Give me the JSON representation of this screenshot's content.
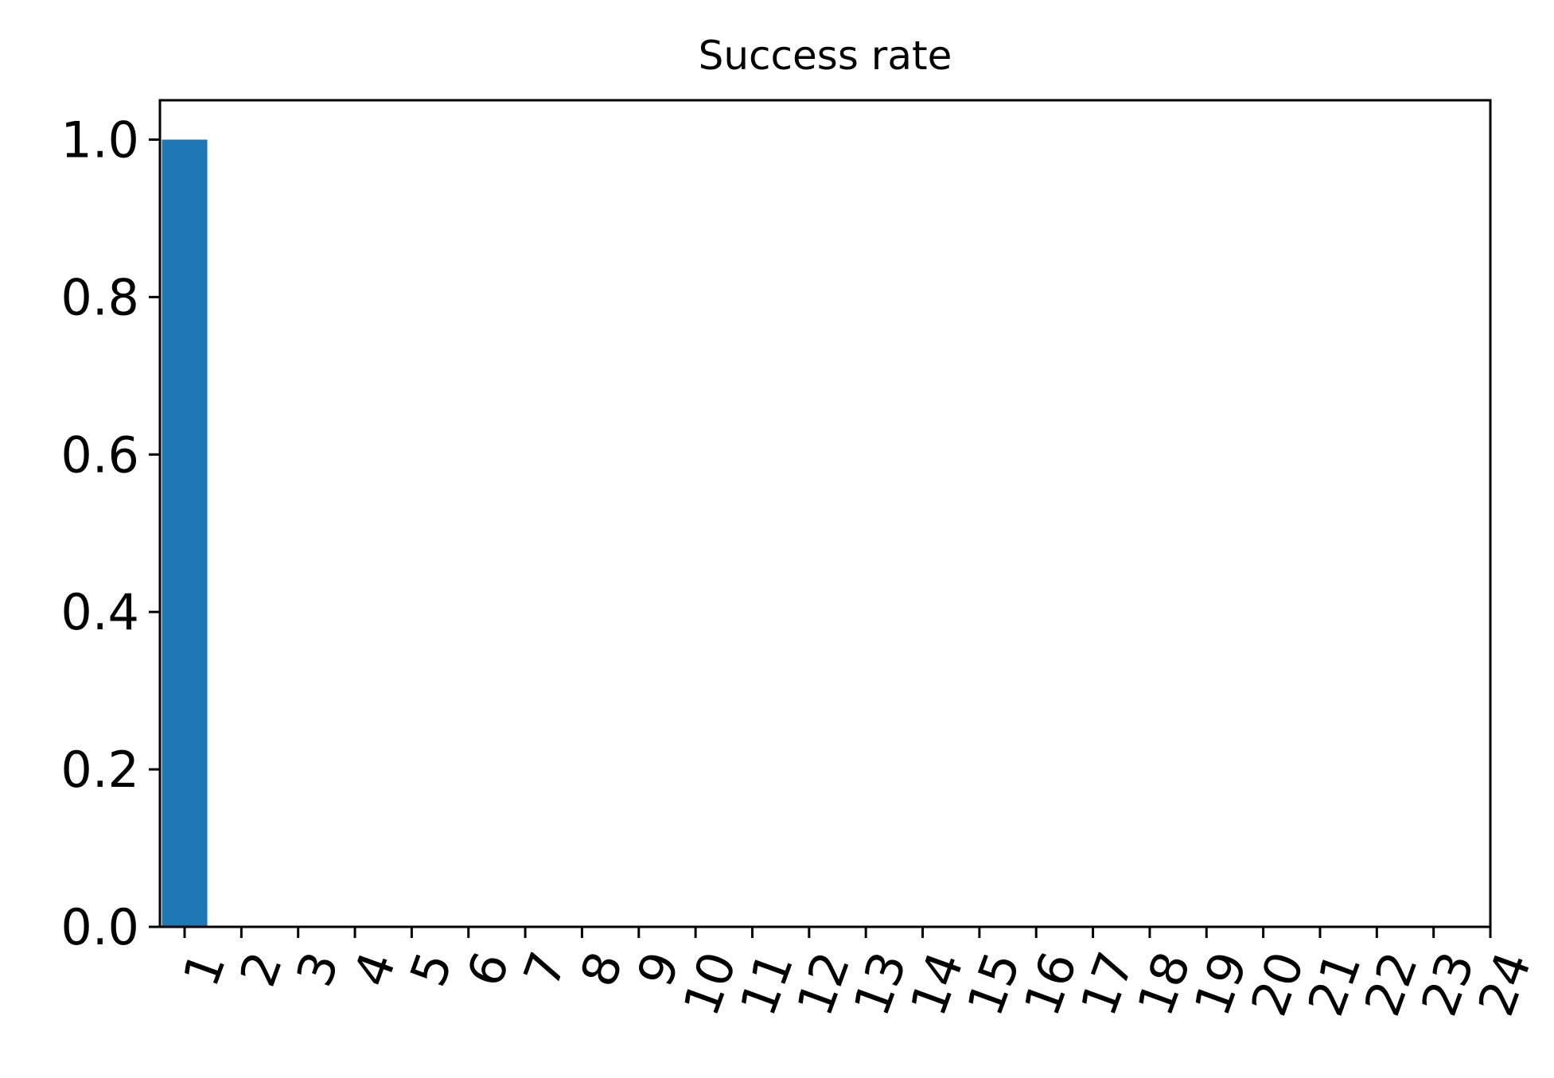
{
  "chart_data": {
    "type": "bar",
    "title": "Success rate",
    "xlabel": "",
    "ylabel": "",
    "categories": [
      "1",
      "2",
      "3",
      "4",
      "5",
      "6",
      "7",
      "8",
      "9",
      "10",
      "11",
      "12",
      "13",
      "14",
      "15",
      "16",
      "17",
      "18",
      "19",
      "20",
      "21",
      "22",
      "23",
      "24"
    ],
    "values": [
      1.0,
      0,
      0,
      0,
      0,
      0,
      0,
      0,
      0,
      0,
      0,
      0,
      0,
      0,
      0,
      0,
      0,
      0,
      0,
      0,
      0,
      0,
      0,
      0
    ],
    "ylim": [
      0,
      1.05
    ],
    "yticks": [
      0.0,
      0.2,
      0.4,
      0.6,
      0.8,
      1.0
    ],
    "ytick_labels": [
      "0.0",
      "0.2",
      "0.4",
      "0.6",
      "0.8",
      "1.0"
    ],
    "bar_color": "#1f77b4",
    "grid": false,
    "legend": "none",
    "xtick_rotation_deg": -70
  }
}
